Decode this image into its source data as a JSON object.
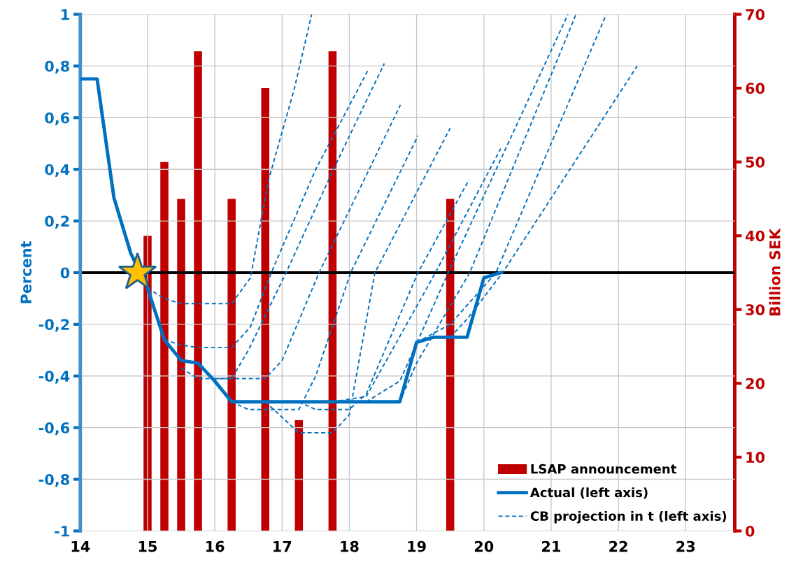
{
  "chart_data": {
    "type": "line",
    "xlim": [
      14,
      23.73
    ],
    "xticks": [
      14,
      15,
      16,
      17,
      18,
      19,
      20,
      21,
      22,
      23
    ],
    "ylim": [
      -1,
      1
    ],
    "yticks": [
      {
        "value": -1,
        "label": "-1"
      },
      {
        "value": -0.8,
        "label": "-0,8"
      },
      {
        "value": -0.6,
        "label": "-0,6"
      },
      {
        "value": -0.4,
        "label": "-0,4"
      },
      {
        "value": -0.2,
        "label": "-0,2"
      },
      {
        "value": 0,
        "label": "0"
      },
      {
        "value": 0.2,
        "label": "0,2"
      },
      {
        "value": 0.4,
        "label": "0,4"
      },
      {
        "value": 0.6,
        "label": "0,6"
      },
      {
        "value": 0.8,
        "label": "0,8"
      },
      {
        "value": 1,
        "label": "1"
      }
    ],
    "y2lim": [
      0,
      70
    ],
    "y2ticks": [
      0,
      10,
      20,
      30,
      40,
      50,
      60,
      70
    ],
    "ylabel": "Percent",
    "y2label": "Billion SEK",
    "grid": true,
    "legend": "bottom right",
    "ref_lines": [
      {
        "axis": "y",
        "value": 0,
        "color": "#000000"
      }
    ],
    "series": [
      {
        "name": "LSAP announcement",
        "type": "bar",
        "axis": "y2",
        "color": "#c00000",
        "x": [
          15.0,
          15.25,
          15.5,
          15.75,
          16.25,
          16.75,
          17.25,
          17.75,
          19.5
        ],
        "values": [
          40,
          50,
          45,
          65,
          45,
          60,
          15,
          65,
          45
        ]
      },
      {
        "name": "Actual (left axis)",
        "line_style": "solid",
        "color": "#0070c0",
        "x": [
          14.0,
          14.25,
          14.5,
          14.75,
          15.0,
          15.25,
          15.5,
          15.75,
          16.0,
          16.25,
          16.5,
          16.75,
          17.0,
          17.25,
          17.5,
          17.75,
          18.0,
          18.25,
          18.5,
          18.75,
          19.0,
          19.25,
          19.5,
          19.75,
          20.0,
          20.25
        ],
        "values": [
          0.75,
          0.75,
          0.29,
          0.075,
          -0.06,
          -0.26,
          -0.34,
          -0.35,
          -0.42,
          -0.5,
          -0.5,
          -0.5,
          -0.5,
          -0.5,
          -0.5,
          -0.5,
          -0.5,
          -0.5,
          -0.5,
          -0.5,
          -0.27,
          -0.25,
          -0.25,
          -0.25,
          -0.02,
          0.0
        ]
      },
      {
        "name": "CB projection in t (left axis)",
        "type": "line",
        "line_style": "dashed",
        "color": "#0070c0",
        "x": [
          15.0,
          15.25,
          15.5,
          16.25,
          16.53,
          16.8,
          17.18,
          17.44
        ],
        "values": [
          -0.06,
          -0.1,
          -0.12,
          -0.12,
          -0.02,
          0.36,
          0.71,
          1.0
        ]
      },
      {
        "type": "line",
        "line_style": "dashed",
        "color": "#0070c0",
        "x": [
          15.25,
          15.5,
          15.75,
          16.25,
          16.53,
          16.84,
          17.5,
          18.27
        ],
        "values": [
          -0.26,
          -0.28,
          -0.29,
          -0.29,
          -0.21,
          0,
          0.4,
          0.78
        ]
      },
      {
        "type": "line",
        "line_style": "dashed",
        "color": "#0070c0",
        "x": [
          15.5,
          15.75,
          16.25,
          16.5,
          17.06,
          17.8,
          18.52
        ],
        "values": [
          -0.37,
          -0.41,
          -0.41,
          -0.3,
          0,
          0.42,
          0.81
        ]
      },
      {
        "type": "line",
        "line_style": "dashed",
        "color": "#0070c0",
        "x": [
          16.0,
          16.25,
          16.75,
          17.0,
          17.55,
          18.76
        ],
        "values": [
          -0.41,
          -0.41,
          -0.41,
          -0.34,
          0,
          0.65
        ]
      },
      {
        "type": "line",
        "line_style": "dashed",
        "color": "#0070c0",
        "x": [
          16.25,
          16.5,
          17.25,
          17.5,
          18.02,
          19.02
        ],
        "values": [
          -0.5,
          -0.53,
          -0.53,
          -0.4,
          0,
          0.53
        ]
      },
      {
        "type": "line",
        "line_style": "dashed",
        "color": "#0070c0",
        "x": [
          16.75,
          17.25,
          17.75,
          18.0,
          18.38,
          19.5
        ],
        "values": [
          -0.5,
          -0.62,
          -0.62,
          -0.55,
          0,
          0.56
        ]
      },
      {
        "type": "line",
        "line_style": "dashed",
        "color": "#0070c0",
        "x": [
          17.25,
          17.5,
          18.0,
          18.25,
          19.02,
          19.78
        ],
        "values": [
          -0.5,
          -0.53,
          -0.53,
          -0.47,
          0,
          0.36
        ]
      },
      {
        "type": "line",
        "line_style": "dashed",
        "color": "#0070c0",
        "x": [
          17.75,
          18.25,
          19.28,
          20.25
        ],
        "values": [
          -0.5,
          -0.48,
          0,
          0.48
        ]
      },
      {
        "type": "line",
        "line_style": "dashed",
        "color": "#0070c0",
        "x": [
          18.25,
          18.75,
          19.47,
          21.25
        ],
        "values": [
          -0.5,
          -0.42,
          0,
          1.0
        ]
      },
      {
        "type": "line",
        "line_style": "dashed",
        "color": "#0070c0",
        "x": [
          18.75,
          19.0,
          19.79,
          21.37
        ],
        "values": [
          -0.5,
          -0.35,
          0,
          1.0
        ]
      },
      {
        "type": "line",
        "line_style": "dashed",
        "color": "#0070c0",
        "x": [
          19.0,
          19.5,
          20.18,
          21.82
        ],
        "values": [
          -0.27,
          -0.2,
          0,
          1.0
        ]
      },
      {
        "type": "line",
        "line_style": "dashed",
        "color": "#0070c0",
        "x": [
          19.5,
          19.75,
          20.28,
          22.28
        ],
        "values": [
          -0.25,
          -0.18,
          0,
          0.8
        ]
      }
    ]
  }
}
